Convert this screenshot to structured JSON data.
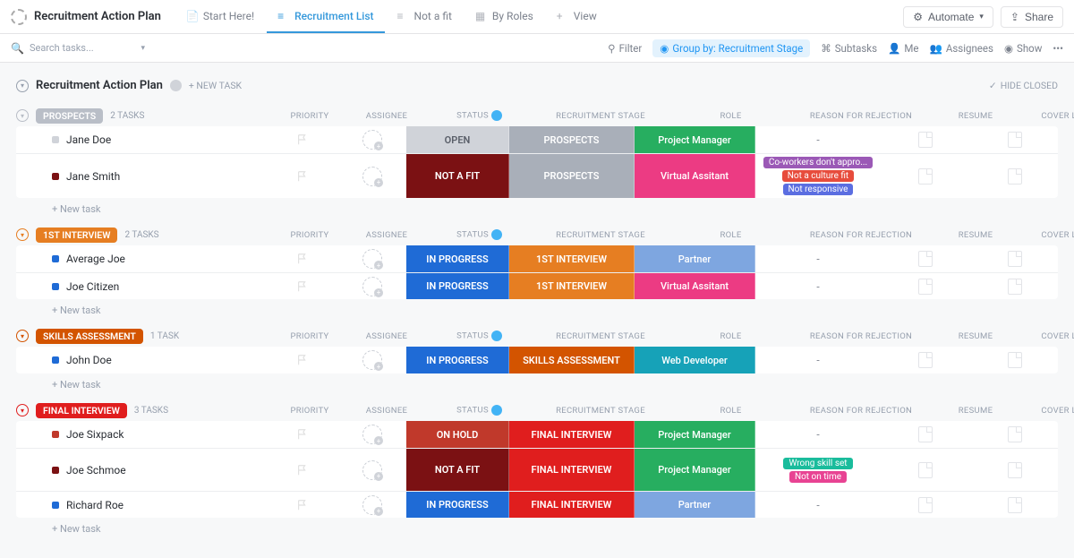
{
  "page": {
    "title": "Recruitment Action Plan"
  },
  "views": [
    {
      "label": "Start Here!",
      "active": false,
      "icon": "doc"
    },
    {
      "label": "Recruitment List",
      "active": true,
      "icon": "list"
    },
    {
      "label": "Not a fit",
      "active": false,
      "icon": "list"
    },
    {
      "label": "By Roles",
      "active": false,
      "icon": "board"
    },
    {
      "label": "View",
      "active": false,
      "icon": "plus"
    }
  ],
  "topActions": {
    "automate": "Automate",
    "share": "Share"
  },
  "toolbar": {
    "searchPlaceholder": "Search tasks...",
    "filter": "Filter",
    "groupBy": "Group by: Recruitment Stage",
    "subtasks": "Subtasks",
    "me": "Me",
    "assignees": "Assignees",
    "show": "Show"
  },
  "section": {
    "title": "Recruitment Action Plan",
    "newTask": "+ NEW TASK",
    "hideClosed": "HIDE CLOSED"
  },
  "columns": {
    "priority": "PRIORITY",
    "assignee": "ASSIGNEE",
    "status": "STATUS",
    "stage": "RECRUITMENT STAGE",
    "role": "ROLE",
    "reject": "REASON FOR REJECTION",
    "resume": "RESUME",
    "cover": "COVER LETTER"
  },
  "newTaskRow": "+ New task",
  "colors": {
    "open": "#d0d3d9",
    "openText": "#5a5f69",
    "prospects": "#a9afb9",
    "inProgress": "#1f6bd6",
    "onHold": "#c0392b",
    "notAFit": "#7b1113",
    "firstInterview": "#e67e22",
    "skillsAssessment": "#d35400",
    "finalInterview": "#e01e1e",
    "projectManager": "#27ae60",
    "virtualAssistant": "#ec3b83",
    "partner": "#7ea6e0",
    "webDeveloper": "#16a2b8"
  },
  "tagColors": {
    "coworkers": "#9b59b6",
    "culture": "#e74c3c",
    "notResponsive": "#5b6ee1",
    "wrongSkill": "#1abc9c",
    "notOnTime": "#e84393"
  },
  "groups": [
    {
      "name": "PROSPECTS",
      "count": "2 TASKS",
      "badgeBg": "#b9bec7",
      "toggleColor": "#b9bec7",
      "rows": [
        {
          "name": "Jane Doe",
          "dot": "#d0d3d9",
          "status": "OPEN",
          "statusC": "open",
          "stage": "PROSPECTS",
          "stageC": "prospects",
          "role": "Project Manager",
          "roleC": "projectManager",
          "reject": "-",
          "tags": [],
          "tall": false
        },
        {
          "name": "Jane Smith",
          "dot": "#7b1113",
          "status": "NOT A FIT",
          "statusC": "notAFit",
          "stage": "PROSPECTS",
          "stageC": "prospects",
          "role": "Virtual Assitant",
          "roleC": "virtualAssistant",
          "reject": "",
          "tags": [
            {
              "t": "Co-workers don't appro...",
              "c": "coworkers"
            },
            {
              "t": "Not a culture fit",
              "c": "culture"
            },
            {
              "t": "Not responsive",
              "c": "notResponsive"
            }
          ],
          "tall": true
        }
      ]
    },
    {
      "name": "1ST INTERVIEW",
      "count": "2 TASKS",
      "badgeBg": "#e67e22",
      "toggleColor": "#e67e22",
      "rows": [
        {
          "name": "Average Joe",
          "dot": "#1f6bd6",
          "status": "IN PROGRESS",
          "statusC": "inProgress",
          "stage": "1ST INTERVIEW",
          "stageC": "firstInterview",
          "role": "Partner",
          "roleC": "partner",
          "reject": "-",
          "tags": [],
          "tall": false
        },
        {
          "name": "Joe Citizen",
          "dot": "#1f6bd6",
          "status": "IN PROGRESS",
          "statusC": "inProgress",
          "stage": "1ST INTERVIEW",
          "stageC": "firstInterview",
          "role": "Virtual Assitant",
          "roleC": "virtualAssistant",
          "reject": "-",
          "tags": [],
          "tall": false
        }
      ]
    },
    {
      "name": "SKILLS ASSESSMENT",
      "count": "1 TASK",
      "badgeBg": "#d35400",
      "toggleColor": "#d35400",
      "rows": [
        {
          "name": "John Doe",
          "dot": "#1f6bd6",
          "status": "IN PROGRESS",
          "statusC": "inProgress",
          "stage": "SKILLS ASSESSMENT",
          "stageC": "skillsAssessment",
          "role": "Web Developer",
          "roleC": "webDeveloper",
          "reject": "-",
          "tags": [],
          "tall": false
        }
      ]
    },
    {
      "name": "FINAL INTERVIEW",
      "count": "3 TASKS",
      "badgeBg": "#e01e1e",
      "toggleColor": "#e01e1e",
      "rows": [
        {
          "name": "Joe Sixpack",
          "dot": "#c0392b",
          "status": "ON HOLD",
          "statusC": "onHold",
          "stage": "FINAL INTERVIEW",
          "stageC": "finalInterview",
          "role": "Project Manager",
          "roleC": "projectManager",
          "reject": "-",
          "tags": [],
          "tall": false
        },
        {
          "name": "Joe Schmoe",
          "dot": "#7b1113",
          "status": "NOT A FIT",
          "statusC": "notAFit",
          "stage": "FINAL INTERVIEW",
          "stageC": "finalInterview",
          "role": "Project Manager",
          "roleC": "projectManager",
          "reject": "",
          "tags": [
            {
              "t": "Wrong skill set",
              "c": "wrongSkill"
            },
            {
              "t": "Not on time",
              "c": "notOnTime"
            }
          ],
          "tall": true
        },
        {
          "name": "Richard Roe",
          "dot": "#1f6bd6",
          "status": "IN PROGRESS",
          "statusC": "inProgress",
          "stage": "FINAL INTERVIEW",
          "stageC": "finalInterview",
          "role": "Partner",
          "roleC": "partner",
          "reject": "-",
          "tags": [],
          "tall": false
        }
      ]
    }
  ]
}
